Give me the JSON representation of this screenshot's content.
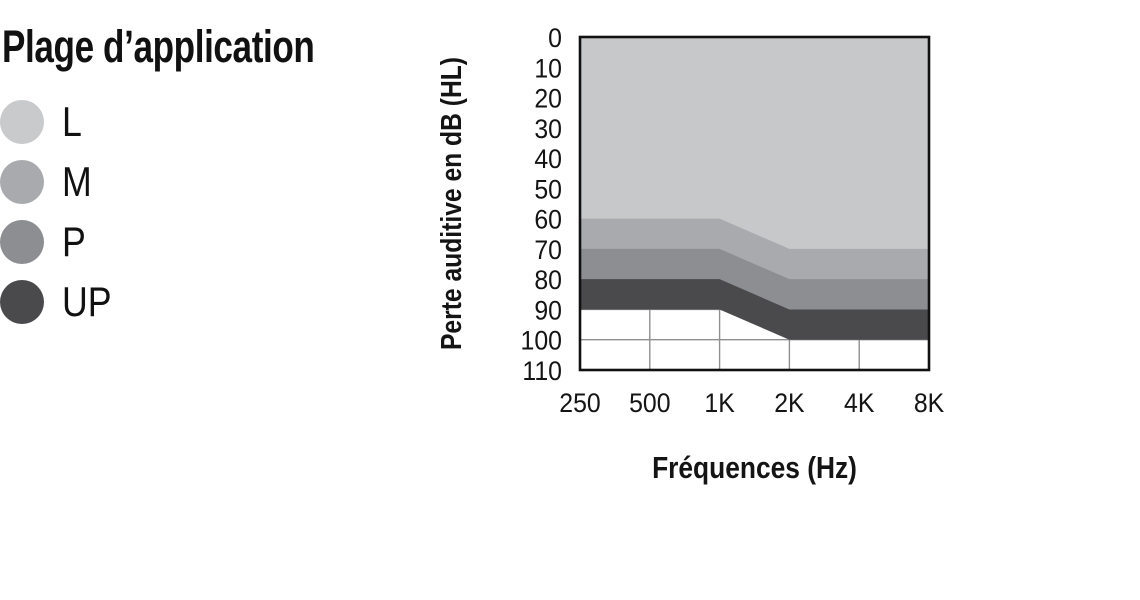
{
  "title": "Plage d’application",
  "legend": {
    "items": [
      {
        "label": "L",
        "color": "#c9cacc"
      },
      {
        "label": "M",
        "color": "#a8aaad"
      },
      {
        "label": "P",
        "color": "#8c8e91"
      },
      {
        "label": "UP",
        "color": "#4a4a4d"
      }
    ]
  },
  "chart_data": {
    "type": "area",
    "title": "Plage d’application",
    "xlabel": "Fréquences (Hz)",
    "ylabel": "Perte auditive en dB (HL)",
    "x_categories": [
      "250",
      "500",
      "1K",
      "2K",
      "4K",
      "8K"
    ],
    "y_ticks": [
      0,
      10,
      20,
      30,
      40,
      50,
      60,
      70,
      80,
      90,
      100,
      110
    ],
    "ylim": [
      0,
      110
    ],
    "y_axis_inverted": true,
    "y_unit": "dB HL",
    "grid": true,
    "legend_position": "left",
    "colors": {
      "plot_bg": "#ffffff",
      "grid": "#8f8f8f",
      "border": "#111111"
    },
    "bands": [
      {
        "name": "L",
        "color": "#c7c8ca",
        "from_db": [
          0,
          0,
          0,
          0,
          0,
          0
        ],
        "to_db": [
          60,
          60,
          60,
          70,
          70,
          70
        ]
      },
      {
        "name": "M",
        "color": "#a8aaad",
        "from_db": [
          60,
          60,
          60,
          70,
          70,
          70
        ],
        "to_db": [
          70,
          70,
          70,
          80,
          80,
          80
        ]
      },
      {
        "name": "P",
        "color": "#8c8e91",
        "from_db": [
          70,
          70,
          70,
          80,
          80,
          80
        ],
        "to_db": [
          80,
          80,
          80,
          90,
          90,
          90
        ]
      },
      {
        "name": "UP",
        "color": "#4a4a4d",
        "from_db": [
          80,
          80,
          80,
          90,
          90,
          90
        ],
        "to_db": [
          90,
          90,
          90,
          100,
          100,
          100
        ]
      }
    ]
  }
}
